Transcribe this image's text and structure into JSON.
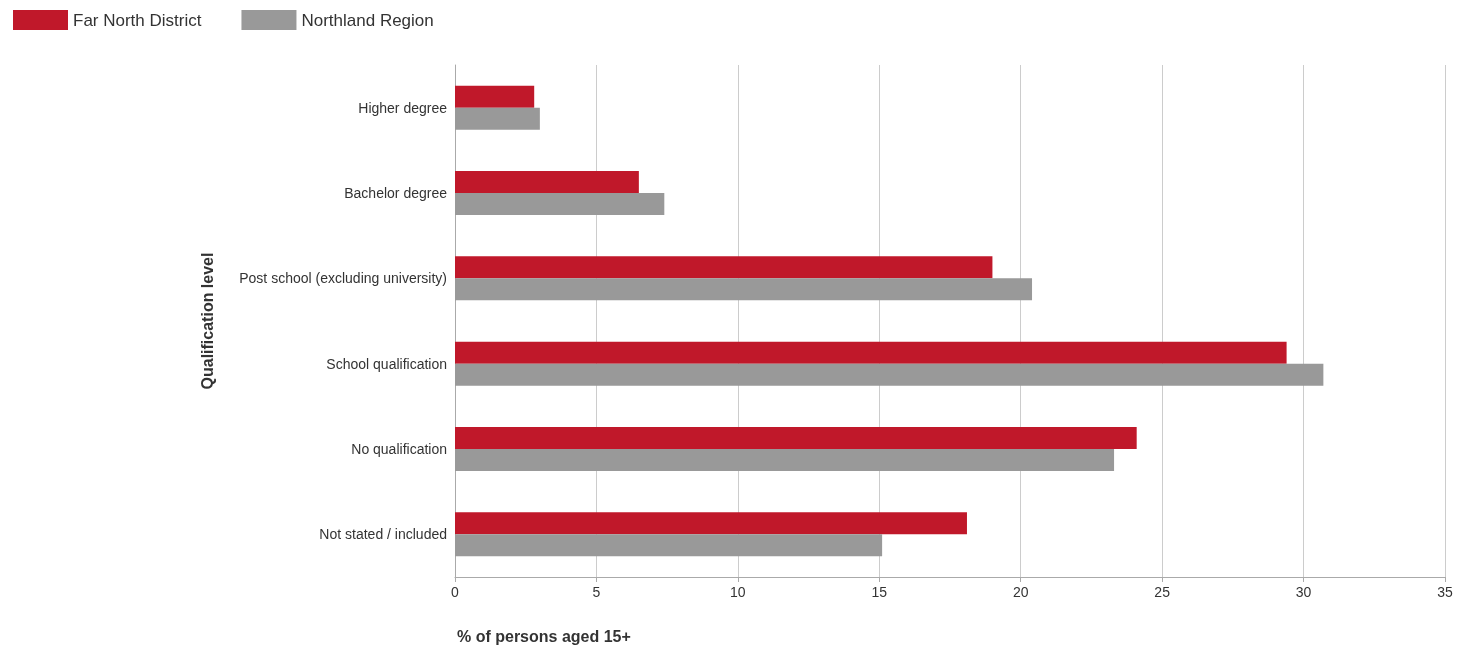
{
  "chart_data": {
    "type": "bar",
    "orientation": "horizontal",
    "xlabel": "% of persons aged 15+",
    "ylabel": "Qualification level",
    "categories": [
      "Higher degree",
      "Bachelor degree",
      "Post school (excluding university)",
      "School qualification",
      "No qualification",
      "Not stated / included"
    ],
    "series": [
      {
        "name": "Far North District",
        "color": "#c0182a",
        "values": [
          2.8,
          6.5,
          19.0,
          29.4,
          24.1,
          18.1
        ]
      },
      {
        "name": "Northland Region",
        "color": "#999999",
        "values": [
          3.0,
          7.4,
          20.4,
          30.7,
          23.3,
          15.1
        ]
      }
    ],
    "xlim": [
      0,
      35
    ],
    "xticks": [
      0,
      5,
      10,
      15,
      20,
      25,
      30,
      35
    ],
    "grid": "x",
    "legend": "top left"
  }
}
